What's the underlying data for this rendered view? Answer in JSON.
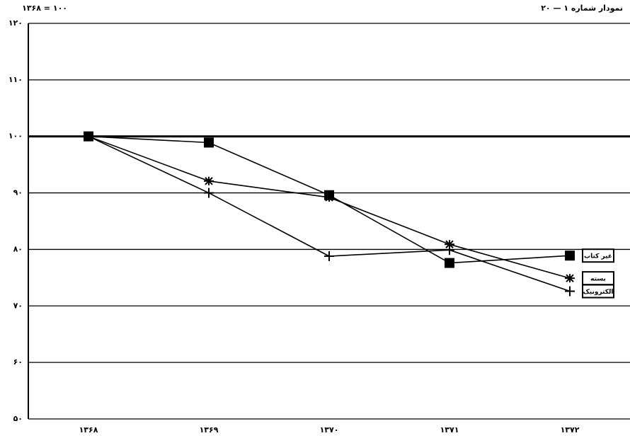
{
  "chart_data": {
    "type": "line",
    "title": "نمودار شماره ۱ — ۲۰",
    "subtitle": "۱۳۶۸ = ۱۰۰",
    "categories": [
      "۱۳۶۸",
      "۱۳۶۹",
      "۱۳۷۰",
      "۱۳۷۱",
      "۱۳۷۲"
    ],
    "series": [
      {
        "name": "غیر کتاب",
        "color": "#000000",
        "marker": "square",
        "values": [
          100,
          98.9,
          89.6,
          77.6,
          78.9
        ]
      },
      {
        "name": "بسته",
        "color": "#000000",
        "marker": "star",
        "values": [
          100,
          92.1,
          89.2,
          80.9,
          74.9
        ]
      },
      {
        "name": "الکترونیک",
        "color": "#000000",
        "marker": "plus",
        "values": [
          100,
          90,
          78.8,
          79.9,
          72.6
        ]
      }
    ],
    "ylim": [
      50,
      120
    ],
    "yticks": [
      {
        "value": 50,
        "label": "۵۰"
      },
      {
        "value": 60,
        "label": "۶۰"
      },
      {
        "value": 70,
        "label": "۷۰"
      },
      {
        "value": 80,
        "label": "۸۰"
      },
      {
        "value": 90,
        "label": "۹۰"
      },
      {
        "value": 100,
        "label": "۱۰۰"
      },
      {
        "value": 110,
        "label": "۱۱۰"
      },
      {
        "value": 120,
        "label": "۱۲۰"
      }
    ],
    "grid": true
  }
}
